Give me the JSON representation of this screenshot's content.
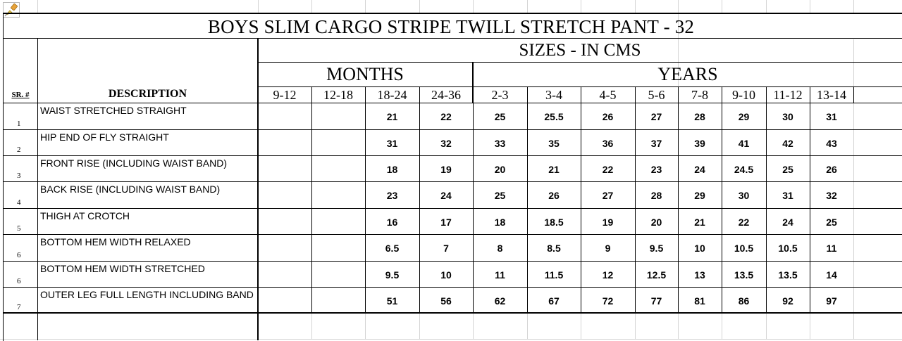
{
  "title": "BOYS SLIM CARGO STRIPE TWILL STRETCH PANT - 32",
  "subtitle": "SIZES - IN CMS",
  "groups": {
    "months": "MONTHS",
    "years": "YEARS"
  },
  "headers": {
    "sr": "SR. #",
    "description": "DESCRIPTION"
  },
  "sizes": [
    "9-12",
    "12-18",
    "18-24",
    "24-36",
    "2-3",
    "3-4",
    "4-5",
    "5-6",
    "7-8",
    "9-10",
    "11-12",
    "13-14"
  ],
  "rows": [
    {
      "sr": "1",
      "desc": "WAIST STRETCHED STRAIGHT",
      "values": [
        "",
        "",
        "21",
        "22",
        "25",
        "25.5",
        "26",
        "27",
        "28",
        "29",
        "30",
        "31"
      ]
    },
    {
      "sr": "2",
      "desc": "HIP END OF FLY STRAIGHT",
      "values": [
        "",
        "",
        "31",
        "32",
        "33",
        "35",
        "36",
        "37",
        "39",
        "41",
        "42",
        "43"
      ]
    },
    {
      "sr": "3",
      "desc": "FRONT RISE (INCLUDING WAIST BAND)",
      "values": [
        "",
        "",
        "18",
        "19",
        "20",
        "21",
        "22",
        "23",
        "24",
        "24.5",
        "25",
        "26"
      ]
    },
    {
      "sr": "4",
      "desc": "BACK RISE (INCLUDING WAIST BAND)",
      "values": [
        "",
        "",
        "23",
        "24",
        "25",
        "26",
        "27",
        "28",
        "29",
        "30",
        "31",
        "32"
      ]
    },
    {
      "sr": "5",
      "desc": "THIGH AT CROTCH",
      "values": [
        "",
        "",
        "16",
        "17",
        "18",
        "18.5",
        "19",
        "20",
        "21",
        "22",
        "24",
        "25"
      ]
    },
    {
      "sr": "6",
      "desc": "BOTTOM HEM WIDTH RELAXED",
      "values": [
        "",
        "",
        "6.5",
        "7",
        "8",
        "8.5",
        "9",
        "9.5",
        "10",
        "10.5",
        "10.5",
        "11"
      ]
    },
    {
      "sr": "6",
      "desc": "BOTTOM HEM WIDTH STRETCHED",
      "values": [
        "",
        "",
        "9.5",
        "10",
        "11",
        "11.5",
        "12",
        "12.5",
        "13",
        "13.5",
        "13.5",
        "14"
      ]
    },
    {
      "sr": "7",
      "desc": "OUTER LEG FULL LENGTH INCLUDING BAND",
      "values": [
        "",
        "",
        "51",
        "56",
        "62",
        "67",
        "72",
        "77",
        "81",
        "86",
        "92",
        "97"
      ]
    }
  ],
  "icons": {
    "corner": "paint-brush-icon"
  }
}
